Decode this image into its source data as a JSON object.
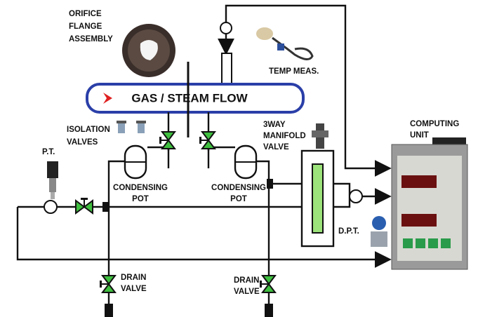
{
  "labels": {
    "orifice": [
      "ORIFICE",
      "FLANGE",
      "ASSEMBLY"
    ],
    "temp": "TEMP MEAS.",
    "flow": "GAS / STEAM FLOW",
    "isolation": [
      "ISOLATION",
      "VALVES"
    ],
    "manifold": [
      "3WAY",
      "MANIFOLD",
      "VALVE"
    ],
    "computing": [
      "COMPUTING",
      "UNIT"
    ],
    "pt": "P.T.",
    "pot_left": [
      "CONDENSING",
      "POT"
    ],
    "pot_right": [
      "CONDENSING",
      "POT"
    ],
    "dpt": "D.P.T.",
    "drain_left": [
      "DRAIN",
      "VALVE"
    ],
    "drain_right": [
      "DRAIN",
      "VALVE"
    ]
  }
}
